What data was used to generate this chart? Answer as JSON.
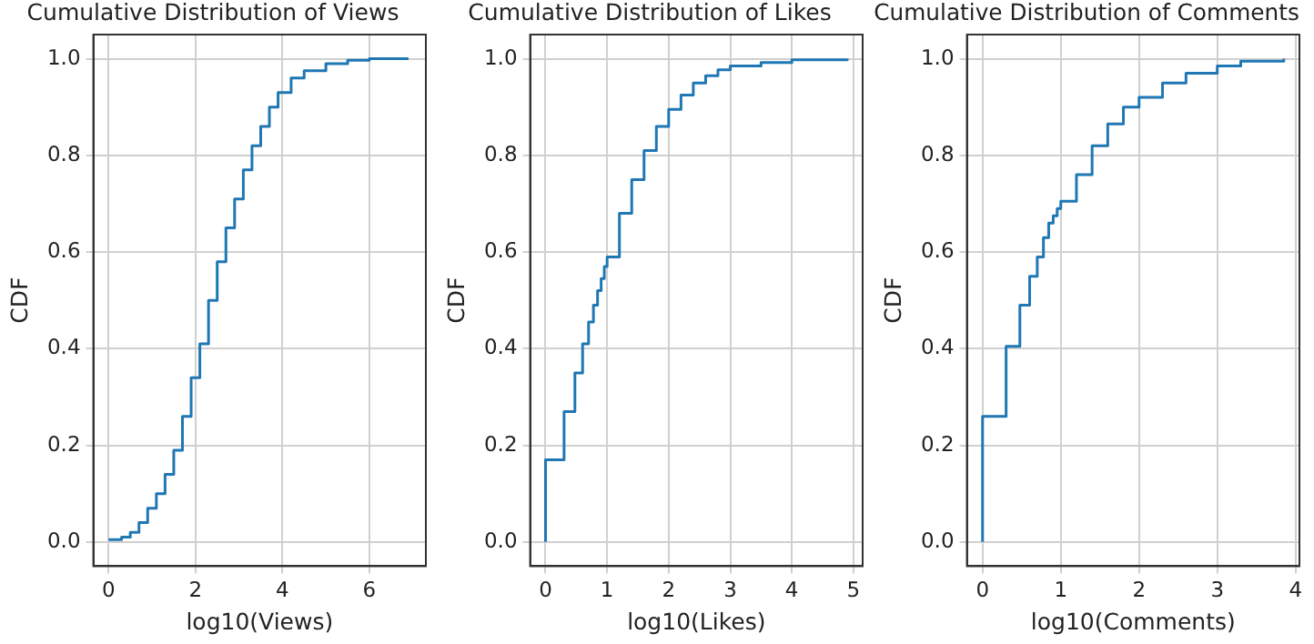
{
  "chart_data": [
    {
      "type": "step",
      "title": "Cumulative Distribution of Views",
      "xlabel": "log10(Views)",
      "ylabel": "CDF",
      "grid": true,
      "legend": false,
      "marker": "none",
      "xlim": [
        -0.35,
        7.3
      ],
      "xticks": [
        0,
        2,
        4,
        6
      ],
      "ylim": [
        -0.05,
        1.05
      ],
      "yticks": [
        {
          "value": 0,
          "label": "0.0"
        },
        {
          "value": 0.2,
          "label": "0.2"
        },
        {
          "value": 0.4,
          "label": "0.4"
        },
        {
          "value": 0.6,
          "label": "0.6"
        },
        {
          "value": 0.8,
          "label": "0.8"
        },
        {
          "value": 1,
          "label": "1.0"
        }
      ],
      "series": [
        {
          "color": "#1f77b4",
          "x": [
            0,
            0.3,
            0.5,
            0.7,
            0.9,
            1.1,
            1.3,
            1.5,
            1.7,
            1.9,
            2.1,
            2.3,
            2.5,
            2.7,
            2.9,
            3.1,
            3.3,
            3.5,
            3.7,
            3.9,
            4.2,
            4.5,
            5.0,
            5.5,
            6.0,
            6.9
          ],
          "values": [
            0.005,
            0.01,
            0.02,
            0.04,
            0.07,
            0.1,
            0.14,
            0.19,
            0.26,
            0.34,
            0.41,
            0.5,
            0.58,
            0.65,
            0.71,
            0.77,
            0.82,
            0.86,
            0.9,
            0.93,
            0.96,
            0.975,
            0.99,
            0.997,
            1.0,
            1.0
          ]
        }
      ]
    },
    {
      "type": "step",
      "title": "Cumulative Distribution of Likes",
      "xlabel": "log10(Likes)",
      "ylabel": "CDF",
      "grid": true,
      "legend": false,
      "marker": "none",
      "xlim": [
        -0.25,
        5.15
      ],
      "xticks": [
        0,
        1,
        2,
        3,
        4,
        5
      ],
      "ylim": [
        -0.05,
        1.05
      ],
      "yticks": [
        {
          "value": 0,
          "label": "0.0"
        },
        {
          "value": 0.2,
          "label": "0.2"
        },
        {
          "value": 0.4,
          "label": "0.4"
        },
        {
          "value": 0.6,
          "label": "0.6"
        },
        {
          "value": 0.8,
          "label": "0.8"
        },
        {
          "value": 1,
          "label": "1.0"
        }
      ],
      "series": [
        {
          "color": "#1f77b4",
          "x": [
            0,
            0,
            0.301,
            0.477,
            0.602,
            0.699,
            0.778,
            0.845,
            0.903,
            0.954,
            1.0,
            1.2,
            1.4,
            1.6,
            1.8,
            2.0,
            2.2,
            2.4,
            2.6,
            2.8,
            3.0,
            3.5,
            4.0,
            4.9
          ],
          "values": [
            0,
            0.17,
            0.27,
            0.35,
            0.41,
            0.455,
            0.49,
            0.52,
            0.545,
            0.57,
            0.59,
            0.68,
            0.75,
            0.81,
            0.86,
            0.895,
            0.925,
            0.95,
            0.965,
            0.977,
            0.985,
            0.992,
            0.998,
            1.0
          ]
        }
      ]
    },
    {
      "type": "step",
      "title": "Cumulative Distribution of Comments",
      "xlabel": "log10(Comments)",
      "ylabel": "CDF",
      "grid": true,
      "legend": false,
      "marker": "none",
      "xlim": [
        -0.2,
        4.05
      ],
      "xticks": [
        0,
        1,
        2,
        3,
        4
      ],
      "ylim": [
        -0.05,
        1.05
      ],
      "yticks": [
        {
          "value": 0,
          "label": "0.0"
        },
        {
          "value": 0.2,
          "label": "0.2"
        },
        {
          "value": 0.4,
          "label": "0.4"
        },
        {
          "value": 0.6,
          "label": "0.6"
        },
        {
          "value": 0.8,
          "label": "0.8"
        },
        {
          "value": 1,
          "label": "1.0"
        }
      ],
      "series": [
        {
          "color": "#1f77b4",
          "x": [
            0,
            0,
            0.301,
            0.477,
            0.602,
            0.699,
            0.778,
            0.845,
            0.903,
            0.954,
            1.0,
            1.2,
            1.4,
            1.6,
            1.8,
            2.0,
            2.3,
            2.6,
            3.0,
            3.3,
            3.85
          ],
          "values": [
            0,
            0.26,
            0.405,
            0.49,
            0.55,
            0.59,
            0.63,
            0.66,
            0.675,
            0.69,
            0.705,
            0.76,
            0.82,
            0.865,
            0.9,
            0.92,
            0.95,
            0.97,
            0.985,
            0.995,
            1.0
          ]
        }
      ]
    }
  ]
}
